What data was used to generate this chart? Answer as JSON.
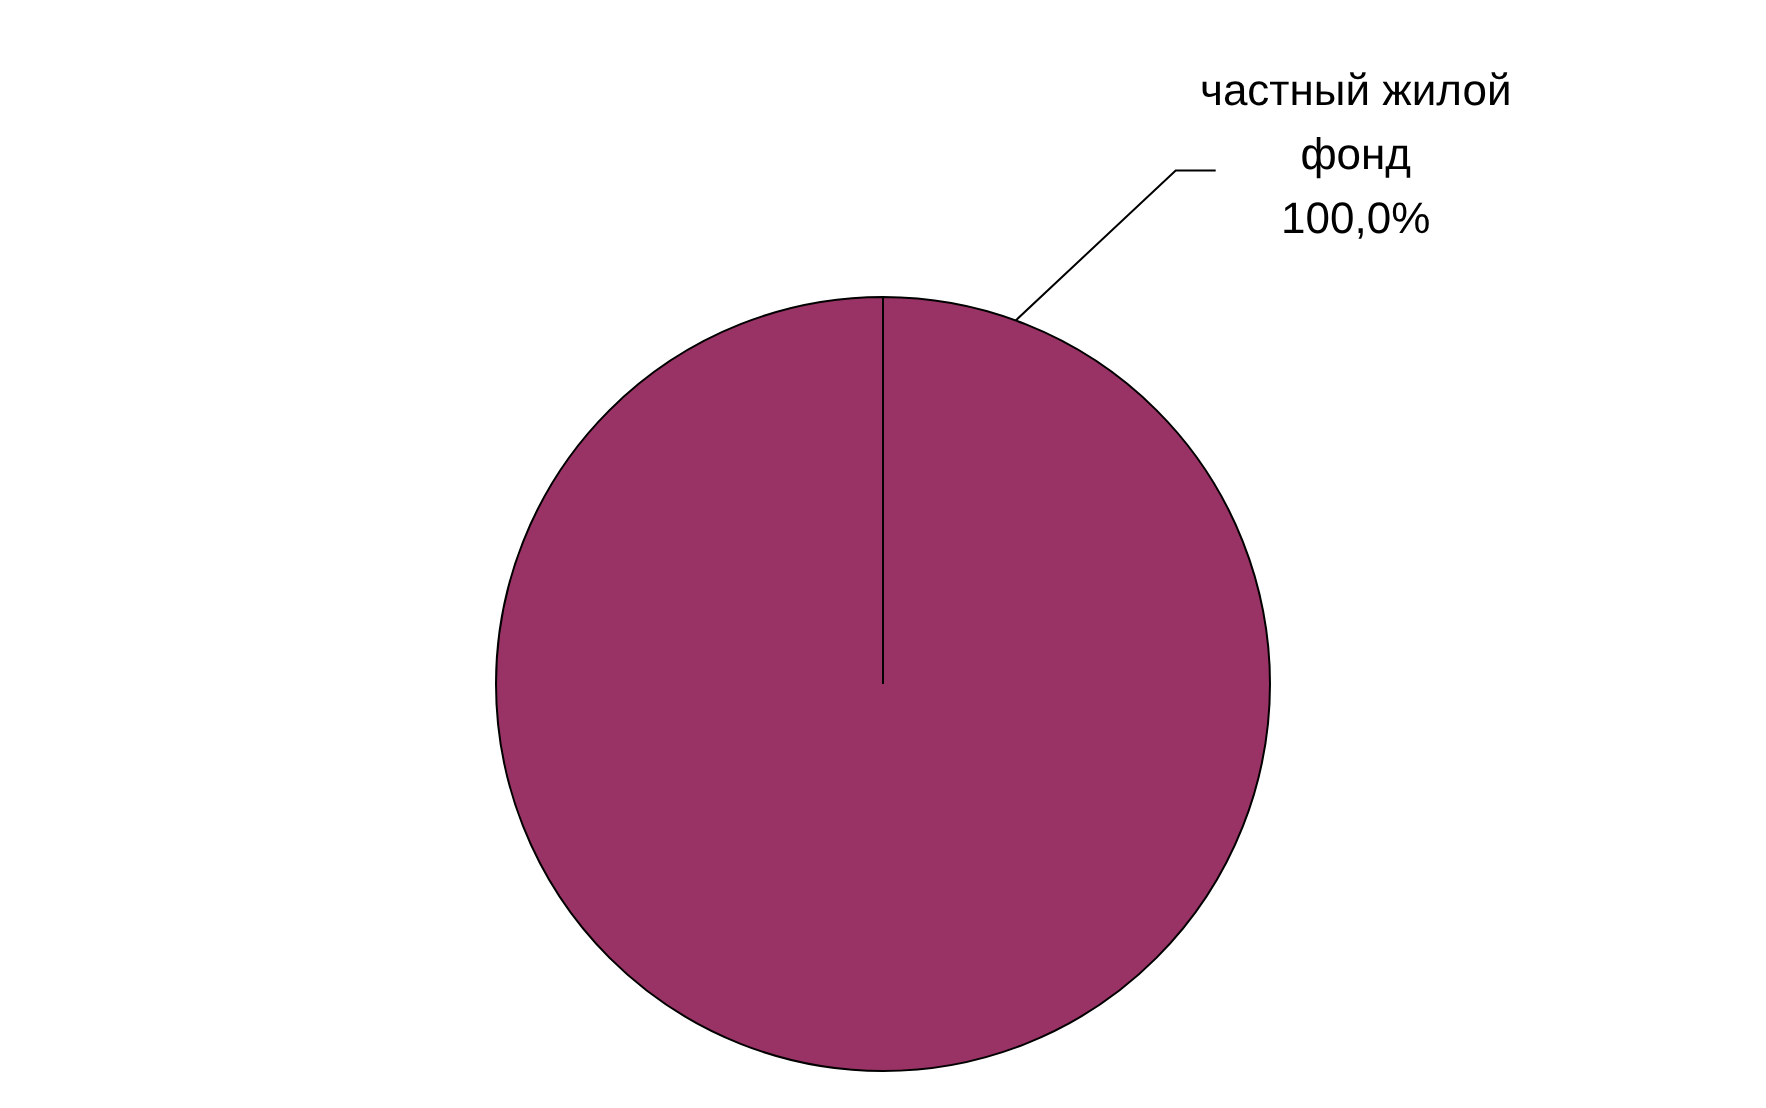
{
  "chart_data": {
    "type": "pie",
    "categories": [
      "частный жилой фонд"
    ],
    "values": [
      100
    ],
    "colors": [
      "#993366"
    ],
    "value_labels": [
      "100,0%"
    ]
  }
}
